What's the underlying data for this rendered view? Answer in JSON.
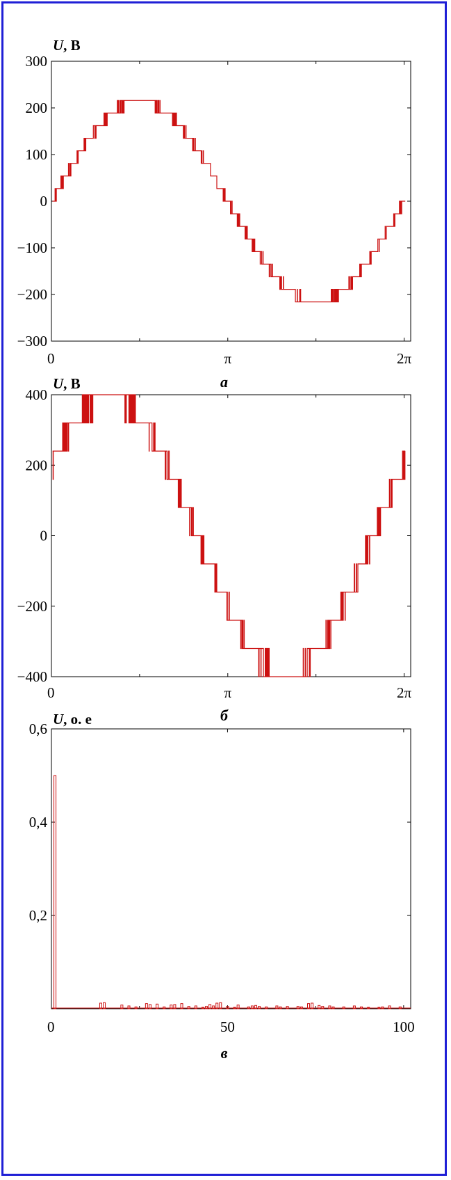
{
  "colors": {
    "frame": "#1f1fd6",
    "signal": "#cc1111",
    "axis": "#000000"
  },
  "chart_data": [
    {
      "type": "line",
      "panel": "a",
      "caption": "а",
      "ylabel_sym": "U",
      "ylabel_unit": ", В",
      "ylim": [
        -300,
        300
      ],
      "xlim": [
        0,
        6.4
      ],
      "yticks": [
        {
          "value": 300,
          "label": "300"
        },
        {
          "value": 200,
          "label": "200"
        },
        {
          "value": 100,
          "label": "100"
        },
        {
          "value": 0,
          "label": "0"
        },
        {
          "value": -100,
          "label": "−100"
        },
        {
          "value": -200,
          "label": "−200"
        },
        {
          "value": -300,
          "label": "−300"
        }
      ],
      "xticks": [
        {
          "value": 0,
          "label": "0"
        },
        {
          "value": 3.14159,
          "label": "π"
        },
        {
          "value": 6.28318,
          "label": "2π"
        }
      ],
      "amplitude": 215,
      "phase": 0,
      "step": 27,
      "description_of_waveform": "stepped sinusoid"
    },
    {
      "type": "line",
      "panel": "b",
      "caption": "б",
      "ylabel_sym": "U",
      "ylabel_unit": ", В",
      "ylim": [
        -400,
        400
      ],
      "xlim": [
        0,
        6.4
      ],
      "yticks": [
        {
          "value": 400,
          "label": "400"
        },
        {
          "value": 200,
          "label": "200"
        },
        {
          "value": 0,
          "label": "0"
        },
        {
          "value": -200,
          "label": "−200"
        },
        {
          "value": -400,
          "label": "−400"
        }
      ],
      "xticks": [
        {
          "value": 0,
          "label": "0"
        },
        {
          "value": 3.14159,
          "label": "π"
        },
        {
          "value": 6.28318,
          "label": "2π"
        }
      ],
      "amplitude": 390,
      "phase": 0.55,
      "step": 80
    },
    {
      "type": "bar",
      "panel": "c",
      "caption": "в",
      "ylabel_sym": "U",
      "ylabel_unit": ", о. е",
      "ylim": [
        0,
        0.6
      ],
      "xlim": [
        0,
        102
      ],
      "yticks": [
        {
          "value": 0.6,
          "label": "0,6"
        },
        {
          "value": 0.4,
          "label": "0,4"
        },
        {
          "value": 0.2,
          "label": "0,2"
        }
      ],
      "xticks": [
        {
          "value": 0,
          "label": "0"
        },
        {
          "value": 50,
          "label": "50"
        },
        {
          "value": 100,
          "label": "100"
        }
      ],
      "harmonics": [
        [
          1,
          0.5
        ],
        [
          14,
          0.012
        ],
        [
          15,
          0.013
        ],
        [
          20,
          0.008
        ],
        [
          22,
          0.006
        ],
        [
          24,
          0.004
        ],
        [
          27,
          0.011
        ],
        [
          28,
          0.009
        ],
        [
          30,
          0.01
        ],
        [
          32,
          0.004
        ],
        [
          34,
          0.008
        ],
        [
          35,
          0.009
        ],
        [
          37,
          0.011
        ],
        [
          39,
          0.005
        ],
        [
          41,
          0.006
        ],
        [
          43,
          0.003
        ],
        [
          44,
          0.005
        ],
        [
          45,
          0.009
        ],
        [
          46,
          0.006
        ],
        [
          47,
          0.012
        ],
        [
          48,
          0.013
        ],
        [
          50,
          0.005
        ],
        [
          52,
          0.003
        ],
        [
          53,
          0.008
        ],
        [
          56,
          0.004
        ],
        [
          57,
          0.006
        ],
        [
          58,
          0.007
        ],
        [
          59,
          0.005
        ],
        [
          61,
          0.004
        ],
        [
          64,
          0.006
        ],
        [
          65,
          0.004
        ],
        [
          67,
          0.005
        ],
        [
          70,
          0.005
        ],
        [
          71,
          0.004
        ],
        [
          73,
          0.011
        ],
        [
          74,
          0.012
        ],
        [
          76,
          0.007
        ],
        [
          77,
          0.005
        ],
        [
          79,
          0.006
        ],
        [
          80,
          0.004
        ],
        [
          83,
          0.004
        ],
        [
          86,
          0.006
        ],
        [
          88,
          0.004
        ],
        [
          90,
          0.003
        ],
        [
          93,
          0.003
        ],
        [
          94,
          0.004
        ],
        [
          96,
          0.006
        ],
        [
          99,
          0.004
        ]
      ]
    }
  ]
}
